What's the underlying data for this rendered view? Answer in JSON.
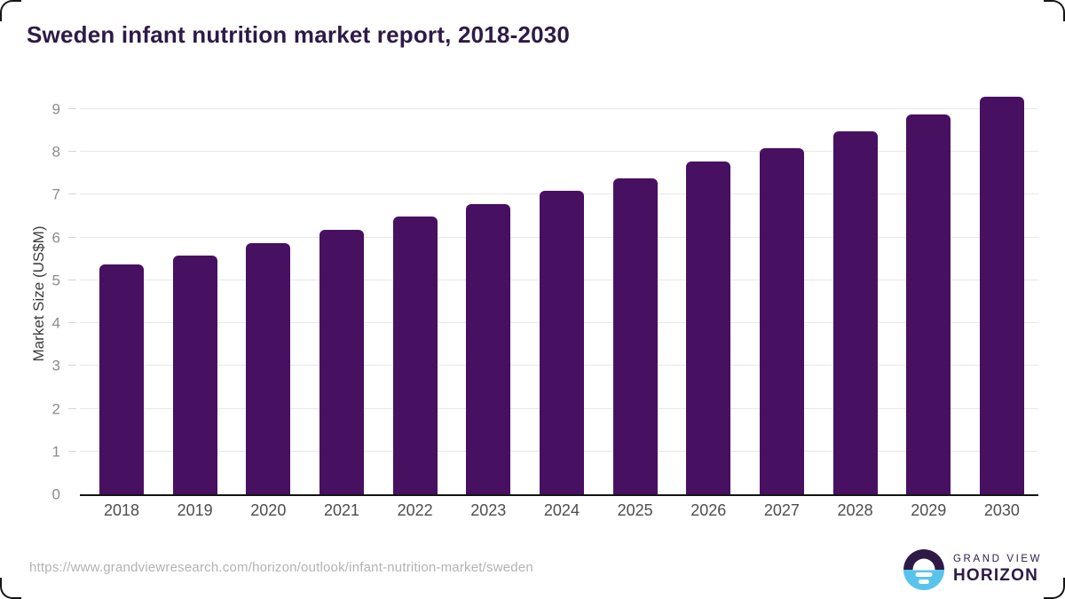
{
  "page": {
    "title": "Sweden infant nutrition market report, 2018-2030"
  },
  "chart_data": {
    "type": "bar",
    "title": "Sweden infant nutrition market report, 2018-2030",
    "categories": [
      "2018",
      "2019",
      "2020",
      "2021",
      "2022",
      "2023",
      "2024",
      "2025",
      "2026",
      "2027",
      "2028",
      "2029",
      "2030"
    ],
    "values": [
      5.37,
      5.57,
      5.86,
      6.18,
      6.48,
      6.78,
      7.09,
      7.37,
      7.78,
      8.08,
      8.47,
      8.87,
      9.29
    ],
    "xlabel": "",
    "ylabel": "Market Size (US$M)",
    "ylim": [
      0,
      9.37
    ],
    "yticks": [
      0,
      1,
      2,
      3,
      4,
      5,
      6,
      7,
      8,
      9
    ],
    "grid": true,
    "legend": "none",
    "bar_color": "#481061"
  },
  "footer": {
    "source_url": "https://www.grandviewresearch.com/horizon/outlook/infant-nutrition-market/sweden",
    "logo": {
      "line1": "GRAND VIEW",
      "line2": "HORIZON"
    }
  },
  "colors": {
    "title_purple": "#2e1a47",
    "bar_purple": "#481061",
    "logo_blue": "#58c4ec",
    "gridline": "#e8e8e8",
    "axis_line": "#141414",
    "ytick_label": "#8c8c8c",
    "xtick_label": "#4d4d4d",
    "url_gray": "#b3b3b3"
  }
}
